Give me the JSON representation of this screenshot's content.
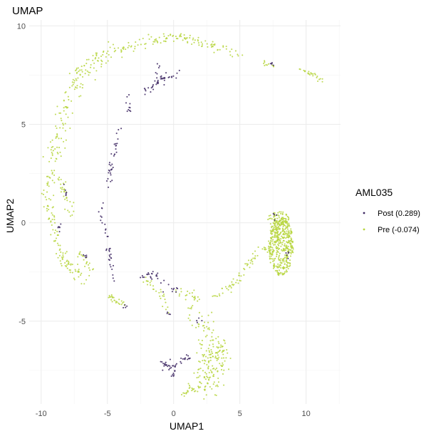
{
  "chart_data": {
    "type": "scatter",
    "title": "UMAP",
    "xlabel": "UMAP1",
    "ylabel": "UMAP2",
    "xlim": [
      -10.9,
      12.6
    ],
    "ylim": [
      -9.2,
      10.3
    ],
    "xticks": [
      -10,
      -5,
      0,
      5,
      10
    ],
    "yticks": [
      -5,
      0,
      5,
      10
    ],
    "grid": true,
    "legend": {
      "title": "AML035",
      "placement": "right"
    },
    "series": [
      {
        "name": "Post (0.289)",
        "color": "#3b2560",
        "segments": [
          {
            "path": [
              [
                -2.3,
                6.6
              ],
              [
                -1.5,
                6.9
              ],
              [
                -0.8,
                7.3
              ],
              [
                -0.1,
                7.5
              ],
              [
                0.4,
                7.5
              ]
            ],
            "n": 40,
            "spread": 0.12
          },
          {
            "path": [
              [
                -1.3,
                7.4
              ],
              [
                -1.2,
                7.9
              ],
              [
                -1.2,
                8.2
              ]
            ],
            "n": 6,
            "spread": 0.08
          },
          {
            "path": [
              [
                -3.6,
                6.4
              ],
              [
                -3.4,
                6.0
              ],
              [
                -3.3,
                5.5
              ]
            ],
            "n": 10,
            "spread": 0.12
          },
          {
            "path": [
              [
                -4.1,
                4.8
              ],
              [
                -4.3,
                4.0
              ],
              [
                -4.5,
                3.4
              ]
            ],
            "n": 15,
            "spread": 0.1
          },
          {
            "path": [
              [
                -4.7,
                3.0
              ],
              [
                -4.8,
                2.4
              ],
              [
                -4.9,
                1.8
              ]
            ],
            "n": 18,
            "spread": 0.1
          },
          {
            "path": [
              [
                -5.3,
                1.1
              ],
              [
                -5.5,
                0.5
              ],
              [
                -5.2,
                -0.3
              ],
              [
                -4.9,
                -0.8
              ]
            ],
            "n": 14,
            "spread": 0.12
          },
          {
            "path": [
              [
                -4.9,
                -1.2
              ],
              [
                -4.8,
                -1.8
              ],
              [
                -4.6,
                -2.3
              ],
              [
                -4.5,
                -2.9
              ]
            ],
            "n": 20,
            "spread": 0.1
          },
          {
            "path": [
              [
                -2.4,
                -2.7
              ],
              [
                -1.6,
                -2.6
              ],
              [
                -1.0,
                -2.8
              ],
              [
                -0.4,
                -3.2
              ],
              [
                0.3,
                -3.5
              ]
            ],
            "n": 30,
            "spread": 0.12
          },
          {
            "path": [
              [
                -0.9,
                -7.2
              ],
              [
                -0.2,
                -7.3
              ],
              [
                0.4,
                -7.2
              ],
              [
                0.9,
                -7.0
              ],
              [
                1.2,
                -6.8
              ]
            ],
            "n": 40,
            "spread": 0.12
          },
          {
            "path": [
              [
                -0.2,
                -7.8
              ],
              [
                0.1,
                -7.6
              ]
            ],
            "n": 6,
            "spread": 0.1
          },
          {
            "path": [
              [
                -8.3,
                2.0
              ],
              [
                -8.1,
                1.3
              ]
            ],
            "n": 6,
            "spread": 0.08
          },
          {
            "path": [
              [
                -8.9,
                0.5
              ],
              [
                -8.6,
                -0.5
              ]
            ],
            "n": 6,
            "spread": 0.1
          },
          {
            "path": [
              [
                -6.9,
                -1.6
              ],
              [
                -6.4,
                -1.8
              ]
            ],
            "n": 5,
            "spread": 0.08
          },
          {
            "path": [
              [
                -3.8,
                -4.2
              ],
              [
                -3.5,
                -4.3
              ]
            ],
            "n": 4,
            "spread": 0.06
          },
          {
            "path": [
              [
                -0.5,
                -4.6
              ],
              [
                -0.3,
                -4.7
              ]
            ],
            "n": 4,
            "spread": 0.06
          },
          {
            "path": [
              [
                7.2,
                8.1
              ],
              [
                7.6,
                8.0
              ]
            ],
            "n": 5,
            "spread": 0.05
          },
          {
            "path": [
              [
                8.6,
                -1.5
              ],
              [
                8.8,
                -1.8
              ]
            ],
            "n": 5,
            "spread": 0.1
          },
          {
            "path": [
              [
                7.4,
                0.5
              ],
              [
                8.0,
                0.3
              ]
            ],
            "n": 4,
            "spread": 0.1
          },
          {
            "path": [
              [
                1.8,
                -4.9
              ],
              [
                2.1,
                -5.0
              ]
            ],
            "n": 4,
            "spread": 0.08
          }
        ]
      },
      {
        "name": "Pre (-0.074)",
        "color": "#b6d53c",
        "segments": [
          {
            "path": [
              [
                -4.6,
                8.6
              ],
              [
                -2.8,
                9.1
              ],
              [
                -1.0,
                9.3
              ],
              [
                0.5,
                9.4
              ],
              [
                1.8,
                9.2
              ],
              [
                3.2,
                8.9
              ],
              [
                4.5,
                8.6
              ],
              [
                5.4,
                8.5
              ]
            ],
            "n": 120,
            "spread": 0.14
          },
          {
            "path": [
              [
                -4.6,
                8.6
              ],
              [
                -6.0,
                8.2
              ],
              [
                -7.0,
                7.6
              ],
              [
                -7.7,
                6.8
              ],
              [
                -8.3,
                5.6
              ],
              [
                -8.8,
                4.4
              ],
              [
                -9.1,
                3.2
              ],
              [
                -9.3,
                2.0
              ],
              [
                -9.4,
                1.0
              ]
            ],
            "n": 170,
            "spread": 0.3
          },
          {
            "path": [
              [
                -9.4,
                1.0
              ],
              [
                -9.2,
                0.0
              ],
              [
                -8.8,
                -1.0
              ],
              [
                -8.2,
                -2.0
              ],
              [
                -7.4,
                -2.6
              ],
              [
                -6.6,
                -3.0
              ]
            ],
            "n": 90,
            "spread": 0.18
          },
          {
            "path": [
              [
                -8.6,
                2.3
              ],
              [
                -8.0,
                1.2
              ],
              [
                -7.8,
                0.4
              ]
            ],
            "n": 30,
            "spread": 0.15
          },
          {
            "path": [
              [
                -7.1,
                -1.5
              ],
              [
                -6.5,
                -2.0
              ],
              [
                -6.2,
                -2.6
              ]
            ],
            "n": 20,
            "spread": 0.14
          },
          {
            "path": [
              [
                -4.9,
                -3.6
              ],
              [
                -4.3,
                -4.0
              ],
              [
                -3.6,
                -4.2
              ]
            ],
            "n": 25,
            "spread": 0.1
          },
          {
            "path": [
              [
                -2.3,
                -2.9
              ],
              [
                -1.6,
                -3.2
              ],
              [
                -0.9,
                -3.6
              ],
              [
                -0.6,
                -4.2
              ],
              [
                -0.5,
                -4.7
              ]
            ],
            "n": 28,
            "spread": 0.12
          },
          {
            "path": [
              [
                0.3,
                -3.5
              ],
              [
                1.0,
                -3.6
              ],
              [
                1.5,
                -3.7
              ],
              [
                1.9,
                -3.9
              ]
            ],
            "n": 20,
            "spread": 0.12
          },
          {
            "path": [
              [
                1.4,
                -4.3
              ],
              [
                2.0,
                -4.9
              ],
              [
                2.7,
                -5.5
              ],
              [
                3.1,
                -6.2
              ],
              [
                3.4,
                -6.8
              ],
              [
                3.4,
                -7.6
              ]
            ],
            "n": 60,
            "spread": 0.3
          },
          {
            "path": [
              [
                2.4,
                -6.5
              ],
              [
                2.8,
                -7.2
              ],
              [
                3.0,
                -7.8
              ],
              [
                2.4,
                -8.1
              ],
              [
                1.8,
                -7.8
              ]
            ],
            "n": 110,
            "spread": 0.42
          },
          {
            "path": [
              [
                1.9,
                -8.3
              ],
              [
                1.2,
                -8.5
              ],
              [
                0.6,
                -8.7
              ]
            ],
            "n": 20,
            "spread": 0.12
          },
          {
            "path": [
              [
                3.3,
                -6.0
              ],
              [
                3.7,
                -6.9
              ]
            ],
            "n": 30,
            "spread": 0.3
          },
          {
            "path": [
              [
                3.0,
                -3.8
              ],
              [
                3.8,
                -3.4
              ],
              [
                4.6,
                -3.0
              ],
              [
                5.4,
                -2.4
              ],
              [
                6.0,
                -1.8
              ],
              [
                6.5,
                -1.5
              ],
              [
                7.2,
                -1.3
              ]
            ],
            "n": 60,
            "spread": 0.14
          },
          {
            "path": [
              [
                8.0,
                -1.0
              ],
              [
                8.0,
                -0.5
              ]
            ],
            "n": 20,
            "spread": 0.2
          },
          {
            "path": [
              [
                6.7,
                8.1
              ],
              [
                7.6,
                8.0
              ]
            ],
            "n": 10,
            "spread": 0.06
          },
          {
            "path": [
              [
                9.5,
                7.8
              ],
              [
                10.6,
                7.5
              ],
              [
                11.6,
                7.1
              ]
            ],
            "n": 25,
            "spread": 0.08
          }
        ],
        "blobs": [
          {
            "center": [
              8.1,
              -1.2
            ],
            "rx": 0.95,
            "ry": 1.5,
            "n": 420
          },
          {
            "center": [
              7.9,
              0.2
            ],
            "rx": 0.8,
            "ry": 0.4,
            "n": 60
          }
        ]
      }
    ]
  }
}
